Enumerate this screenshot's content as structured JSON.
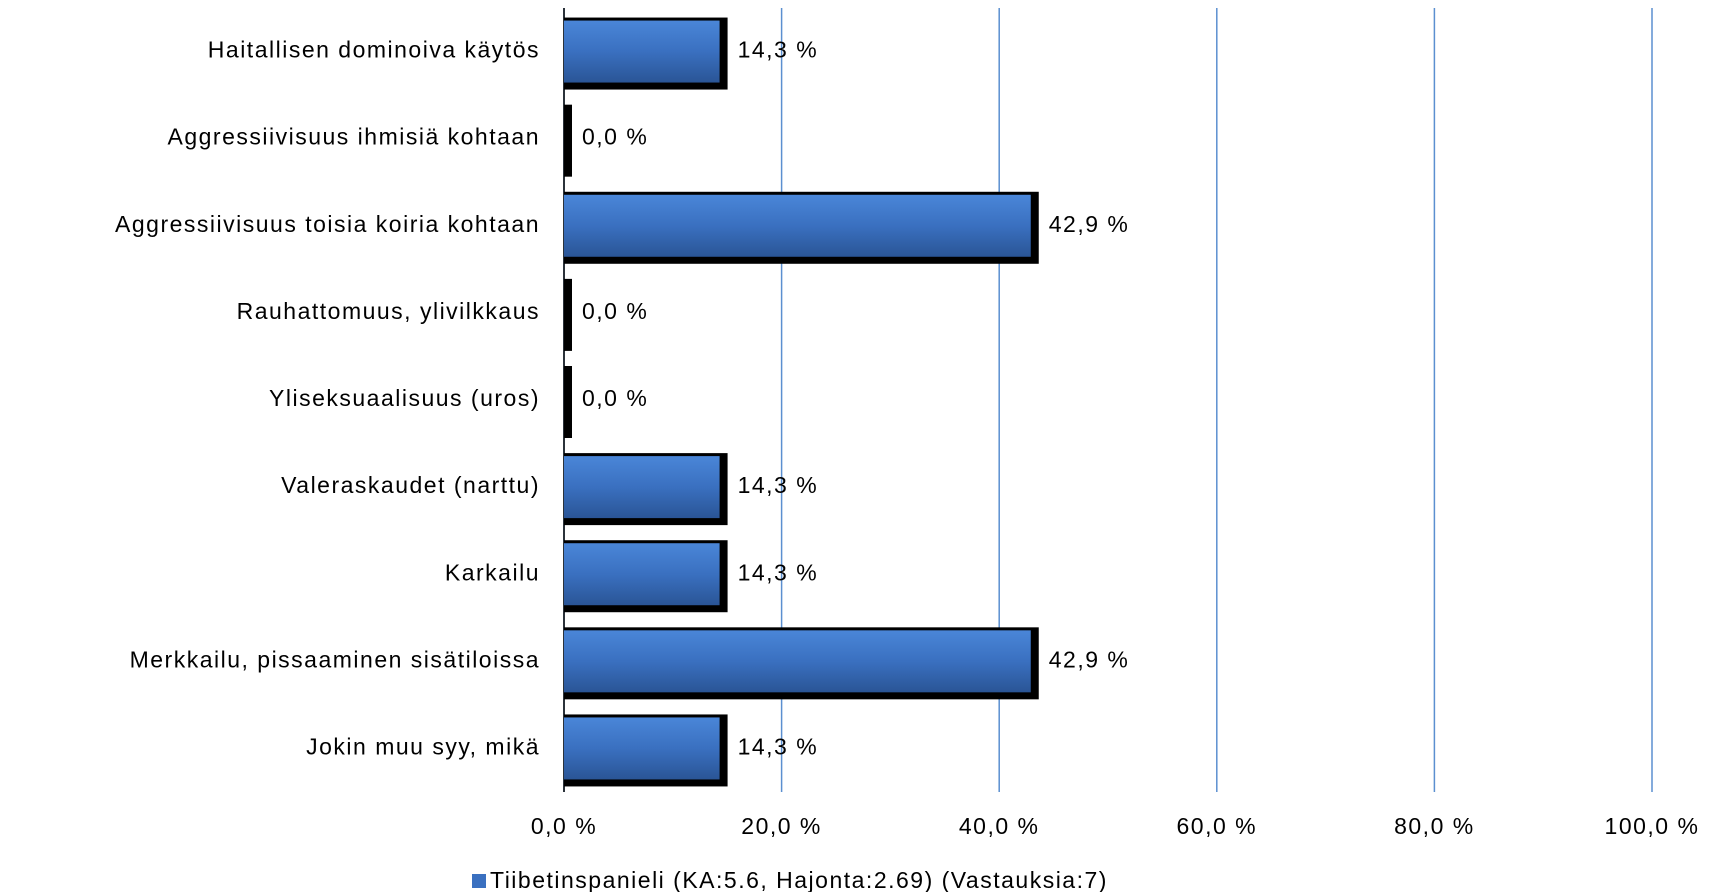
{
  "chart_data": {
    "type": "bar",
    "orientation": "horizontal",
    "categories": [
      "Haitallisen dominoiva käytös",
      "Aggressiivisuus ihmisiä kohtaan",
      "Aggressiivisuus toisia koiria kohtaan",
      "Rauhattomuus, ylivilkkaus",
      "Yliseksuaalisuus (uros)",
      "Valeraskaudet (narttu)",
      "Karkailu",
      "Merkkailu, pissaaminen sisätiloissa",
      "Jokin muu syy, mikä"
    ],
    "series": [
      {
        "name": "Tiibetinspanieli (KA:5.6, Hajonta:2.69) (Vastauksia:7)",
        "color": "#3a70c0",
        "values": [
          14.3,
          0,
          42.9,
          0,
          0,
          14.3,
          14.3,
          42.9,
          14.3
        ],
        "value_labels": [
          "14,3 %",
          "0,0 %",
          "42,9 %",
          "0,0 %",
          "0,0 %",
          "14,3 %",
          "14,3 %",
          "42,9 %",
          "14,3 %"
        ]
      }
    ],
    "xlim": [
      0,
      100
    ],
    "xticks": [
      {
        "value": 0,
        "label": "0,0 %"
      },
      {
        "value": 20,
        "label": "20,0 %"
      },
      {
        "value": 40,
        "label": "40,0 %"
      },
      {
        "value": 60,
        "label": "60,0 %"
      },
      {
        "value": 80,
        "label": "80,0 %"
      },
      {
        "value": 100,
        "label": "100,0 %"
      }
    ],
    "grid": true,
    "grid_color": "#5b8fd0",
    "legend": "bottom"
  }
}
